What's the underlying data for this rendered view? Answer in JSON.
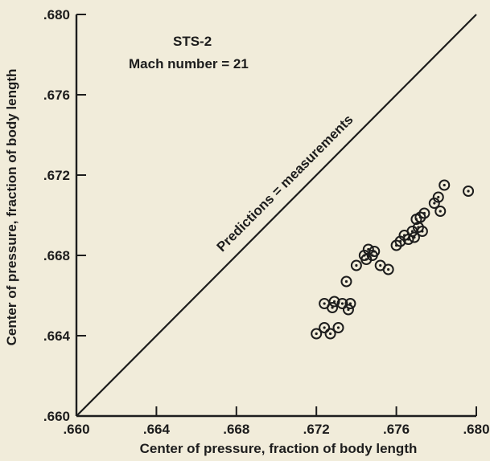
{
  "chart_data": {
    "type": "scatter",
    "title": "STS-2",
    "subtitle": "Mach number = 21",
    "xlabel": "Center of pressure, fraction of body length",
    "ylabel": "Center of pressure, fraction of body length",
    "xlim": [
      0.66,
      0.68
    ],
    "ylim": [
      0.66,
      0.68
    ],
    "xticks": [
      ".660",
      ".664",
      ".668",
      ".672",
      ".676",
      ".680"
    ],
    "yticks": [
      ".660",
      ".664",
      ".668",
      ".672",
      ".676",
      ".680"
    ],
    "reference_line_label": "Predictions = measurements",
    "marker": "circled-dot",
    "colors": {
      "ink": "#1d1d1d",
      "background": "#f1ecda"
    },
    "points": [
      [
        0.672,
        0.6641
      ],
      [
        0.6724,
        0.6644
      ],
      [
        0.6727,
        0.6641
      ],
      [
        0.6731,
        0.6644
      ],
      [
        0.6724,
        0.6656
      ],
      [
        0.6728,
        0.6654
      ],
      [
        0.6733,
        0.6656
      ],
      [
        0.6736,
        0.6653
      ],
      [
        0.6737,
        0.6656
      ],
      [
        0.6729,
        0.6657
      ],
      [
        0.6735,
        0.6667
      ],
      [
        0.674,
        0.6675
      ],
      [
        0.6744,
        0.668
      ],
      [
        0.6746,
        0.6683
      ],
      [
        0.6748,
        0.668
      ],
      [
        0.6752,
        0.6675
      ],
      [
        0.6749,
        0.6682
      ],
      [
        0.6745,
        0.6678
      ],
      [
        0.6756,
        0.6673
      ],
      [
        0.676,
        0.6685
      ],
      [
        0.6762,
        0.6687
      ],
      [
        0.6764,
        0.669
      ],
      [
        0.6766,
        0.6688
      ],
      [
        0.6769,
        0.6689
      ],
      [
        0.6768,
        0.6692
      ],
      [
        0.6771,
        0.6694
      ],
      [
        0.677,
        0.6698
      ],
      [
        0.6773,
        0.6692
      ],
      [
        0.6772,
        0.6699
      ],
      [
        0.6774,
        0.6701
      ],
      [
        0.6779,
        0.6706
      ],
      [
        0.6781,
        0.6709
      ],
      [
        0.6782,
        0.6702
      ],
      [
        0.6784,
        0.6715
      ],
      [
        0.6796,
        0.6712
      ]
    ]
  }
}
